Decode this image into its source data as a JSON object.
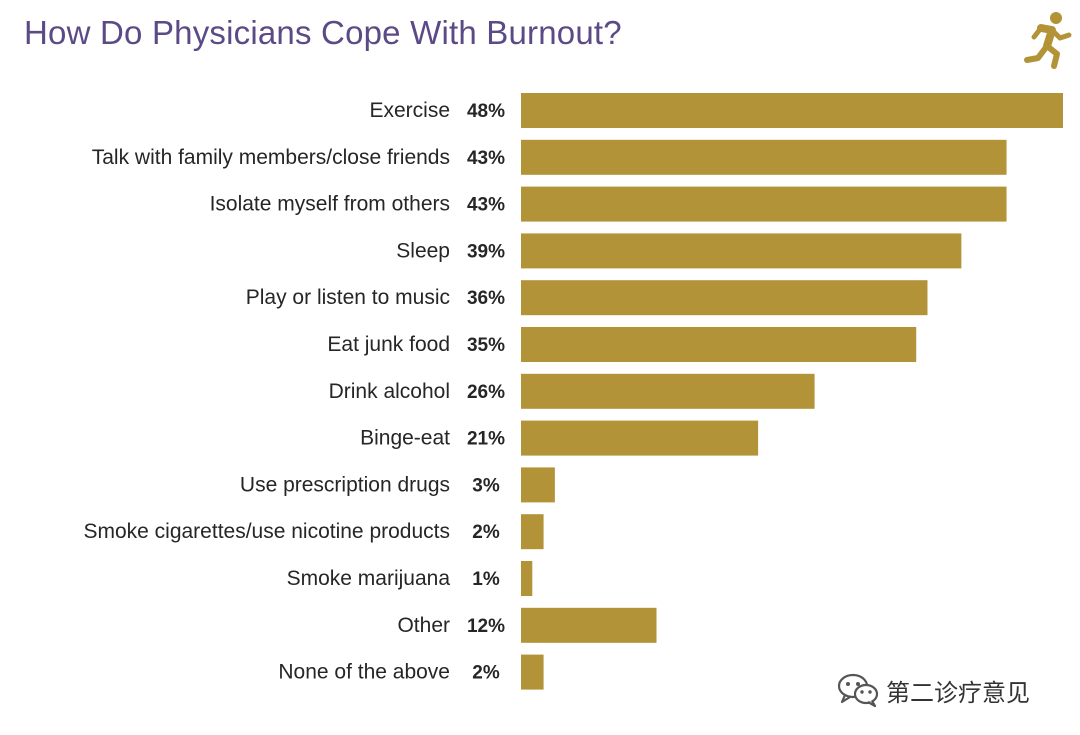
{
  "header": {
    "title": "How Do Physicians Cope With Burnout?",
    "icon": "running-person-icon"
  },
  "watermark": {
    "text": "第二诊疗意见",
    "icon": "wechat-icon"
  },
  "colors": {
    "bar": "#b39337",
    "title": "#5b4a86",
    "text": "#262626"
  },
  "chart_data": {
    "type": "bar",
    "orientation": "horizontal",
    "title": "How Do Physicians Cope With Burnout?",
    "xlabel": "",
    "ylabel": "",
    "categories": [
      "Exercise",
      "Talk with family members/close friends",
      "Isolate myself from others",
      "Sleep",
      "Play or listen to music",
      "Eat junk food",
      "Drink alcohol",
      "Binge-eat",
      "Use prescription drugs",
      "Smoke cigarettes/use nicotine products",
      "Smoke marijuana",
      "Other",
      "None of the above"
    ],
    "values": [
      48,
      43,
      43,
      39,
      36,
      35,
      26,
      21,
      3,
      2,
      1,
      12,
      2
    ],
    "value_labels": [
      "48%",
      "43%",
      "43%",
      "39%",
      "36%",
      "35%",
      "26%",
      "21%",
      "3%",
      "2%",
      "1%",
      "12%",
      "2%"
    ],
    "unit": "%",
    "xlim": [
      0,
      48
    ],
    "grid": false,
    "legend": "none"
  }
}
